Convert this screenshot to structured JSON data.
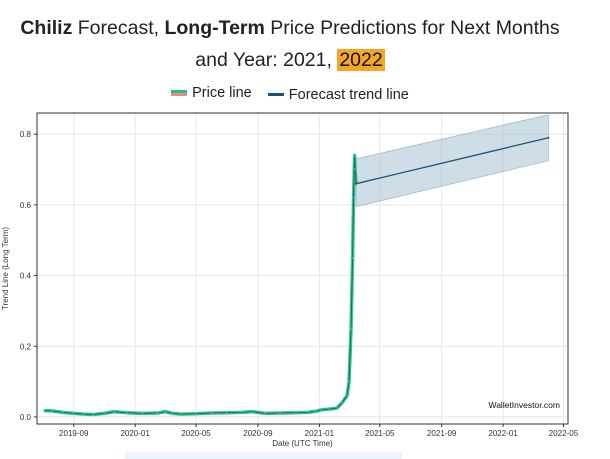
{
  "title": {
    "part1_bold": "Chiliz",
    "part2": " Forecast, ",
    "part3_bold": "Long-Term",
    "part4": " Price Predictions for Next Months",
    "part5": "and Year: 2021, ",
    "highlight": "2022"
  },
  "chart_data": {
    "type": "line",
    "legend": [
      "Price line",
      "Forecast trend line"
    ],
    "legend_placement": "top",
    "ylabel": "Trend Line (Long Term)",
    "xlabel": "Date (UTC Time)",
    "watermark": "WalletInvestor.com",
    "grid": true,
    "ylim": [
      -0.02,
      0.86
    ],
    "xlim": [
      "2019-06-20",
      "2022-05-10"
    ],
    "yticks": [
      "0.0",
      "0.2",
      "0.4",
      "0.6",
      "0.8"
    ],
    "xticks": [
      "2019-09",
      "2020-01",
      "2020-05",
      "2020-09",
      "2021-01",
      "2021-05",
      "2021-09",
      "2022-01",
      "2022-05"
    ],
    "series": [
      {
        "name": "Price line",
        "color": "#1fbf8f",
        "x": [
          "2019-07-05",
          "2019-07-20",
          "2019-08-10",
          "2019-09-01",
          "2019-09-20",
          "2019-10-10",
          "2019-11-01",
          "2019-11-20",
          "2019-12-15",
          "2020-01-15",
          "2020-02-15",
          "2020-03-01",
          "2020-03-15",
          "2020-04-01",
          "2020-05-01",
          "2020-06-01",
          "2020-07-01",
          "2020-08-01",
          "2020-08-20",
          "2020-09-15",
          "2020-10-15",
          "2020-11-15",
          "2020-12-10",
          "2020-12-25",
          "2021-01-05",
          "2021-01-20",
          "2021-02-05",
          "2021-02-15",
          "2021-02-25",
          "2021-03-01",
          "2021-03-05",
          "2021-03-08",
          "2021-03-10",
          "2021-03-12",
          "2021-03-13",
          "2021-03-15"
        ],
        "values": [
          0.018,
          0.017,
          0.013,
          0.01,
          0.008,
          0.007,
          0.01,
          0.015,
          0.012,
          0.01,
          0.011,
          0.015,
          0.01,
          0.008,
          0.009,
          0.011,
          0.012,
          0.013,
          0.015,
          0.01,
          0.011,
          0.012,
          0.013,
          0.016,
          0.02,
          0.022,
          0.025,
          0.04,
          0.06,
          0.1,
          0.25,
          0.45,
          0.62,
          0.74,
          0.7,
          0.66
        ]
      },
      {
        "name": "Forecast trend line",
        "color": "#1a5276",
        "x": [
          "2021-03-15",
          "2022-04-01"
        ],
        "values": [
          0.66,
          0.79
        ],
        "band_upper": [
          0.73,
          0.855
        ],
        "band_lower": [
          0.595,
          0.725
        ]
      }
    ]
  }
}
